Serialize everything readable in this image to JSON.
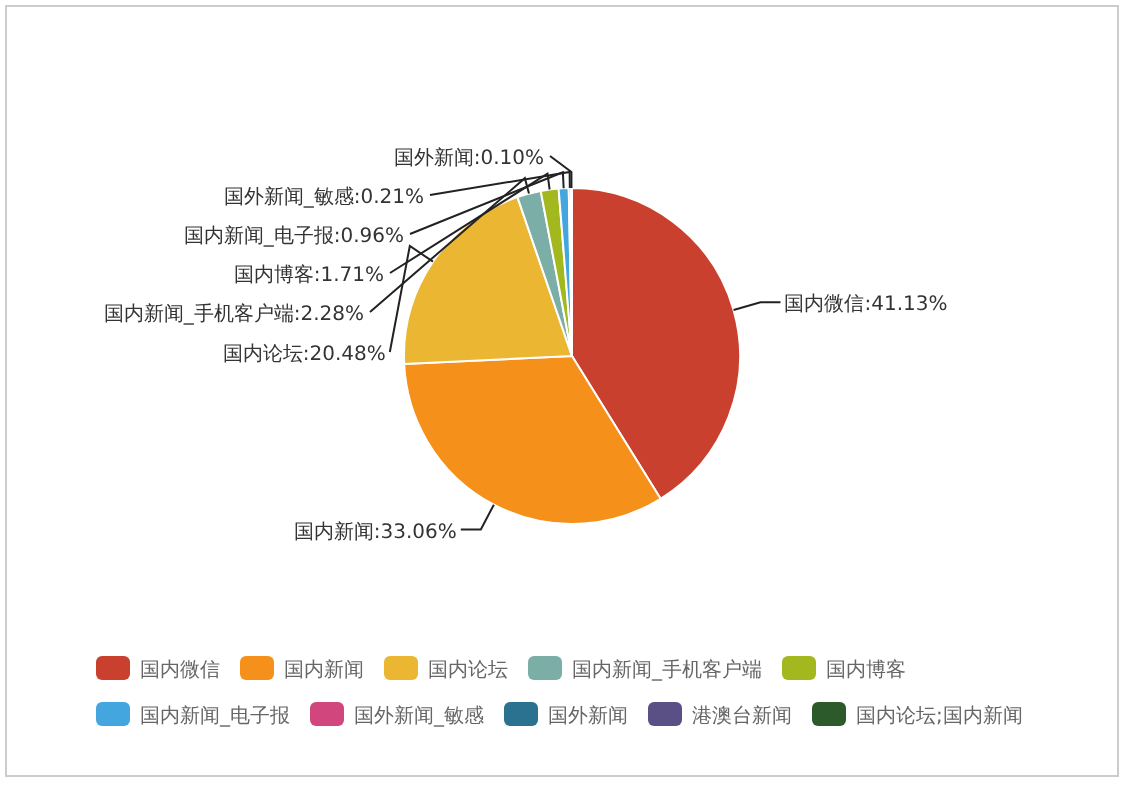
{
  "chart_data": {
    "type": "pie",
    "categories": [
      "国内微信",
      "国内新闻",
      "国内论坛",
      "国内新闻_手机客户端",
      "国内博客",
      "国内新闻_电子报",
      "国外新闻_敏感",
      "国外新闻",
      "港澳台新闻",
      "国内论坛;国内新闻"
    ],
    "values": [
      41.13,
      33.06,
      20.48,
      2.28,
      1.71,
      0.96,
      0.21,
      0.1,
      0,
      0
    ],
    "value_labels": [
      "国内微信:41.13%",
      "国内新闻:33.06%",
      "国内论坛:20.48%",
      "国内新闻_手机客户端:2.28%",
      "国内博客:1.71%",
      "国内新闻_电子报:0.96%",
      "国外新闻_敏感:0.21%",
      "国外新闻:0.10%",
      null,
      null
    ],
    "colors": [
      "#c9402f",
      "#f5901a",
      "#ebb632",
      "#7aaea6",
      "#a2b81e",
      "#44a6df",
      "#d1467c",
      "#2b7190",
      "#5b5086",
      "#2d5a2b"
    ],
    "legend": "bottom"
  }
}
